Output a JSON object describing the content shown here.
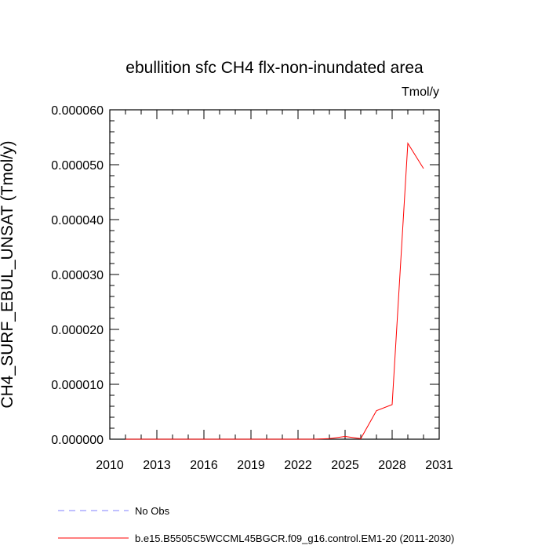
{
  "chart_data": {
    "type": "line",
    "title": "ebullition sfc CH4 flx-non-inundated area",
    "units_label": "Tmol/y",
    "ylabel": "CH4_SURF_EBUL_UNSAT  (Tmol/y)",
    "xlabel": "",
    "xlim": [
      2010,
      2031
    ],
    "ylim": [
      0,
      6e-05
    ],
    "x_ticks": [
      2010,
      2013,
      2016,
      2019,
      2022,
      2025,
      2028,
      2031
    ],
    "x_tick_labels": [
      "2010",
      "2013",
      "2016",
      "2019",
      "2022",
      "2025",
      "2028",
      "2031"
    ],
    "y_ticks": [
      0,
      1e-05,
      2e-05,
      3e-05,
      4e-05,
      5e-05,
      6e-05
    ],
    "y_tick_labels": [
      "0.000000",
      "0.000010",
      "0.000020",
      "0.000030",
      "0.000040",
      "0.000050",
      "0.000060"
    ],
    "series": [
      {
        "name": "b.e15.B5505C5WCCML45BGCR.f09_g16.control.EM1-20 (2011-2030)",
        "color": "#ff0000",
        "style": "solid",
        "x": [
          2011,
          2012,
          2013,
          2014,
          2015,
          2016,
          2017,
          2018,
          2019,
          2020,
          2021,
          2022,
          2023,
          2024,
          2025,
          2026,
          2027,
          2028,
          2029,
          2030
        ],
        "y": [
          0,
          0,
          0,
          0,
          0,
          0,
          0,
          0,
          0,
          0,
          0,
          0,
          0,
          1e-07,
          5e-07,
          1e-07,
          5.2e-06,
          6.3e-06,
          5.39e-05,
          4.93e-05
        ]
      }
    ],
    "legend": [
      {
        "label": "No Obs",
        "color": "#8080ff",
        "style": "dashed"
      },
      {
        "label": "b.e15.B5505C5WCCML45BGCR.f09_g16.control.EM1-20 (2011-2030)",
        "color": "#ff0000",
        "style": "solid"
      }
    ]
  }
}
